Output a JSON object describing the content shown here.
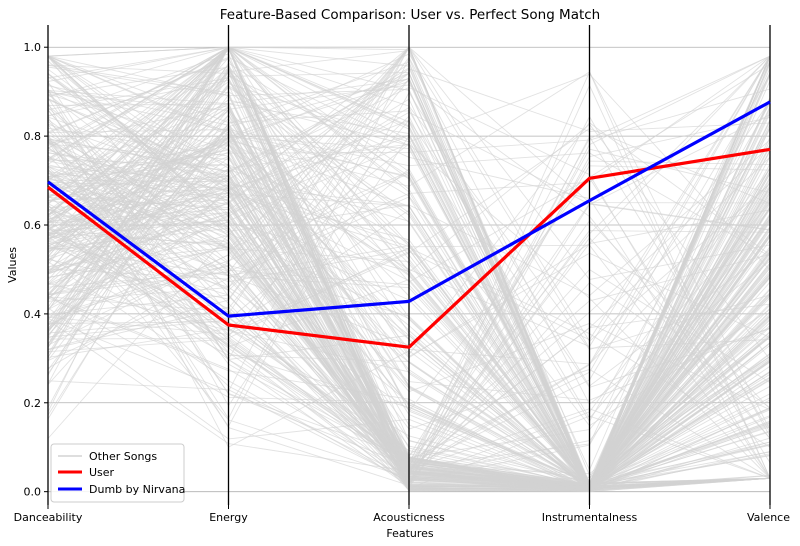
{
  "chart_data": {
    "type": "parallel_coordinates",
    "title": "Feature-Based Comparison: User vs. Perfect Song Match",
    "xlabel": "Features",
    "ylabel": "Values",
    "categories": [
      "Danceability",
      "Energy",
      "Acousticness",
      "Instrumentalness",
      "Valence"
    ],
    "ylim": [
      -0.03,
      1.05
    ],
    "yticks": [
      "0.0",
      "0.2",
      "0.4",
      "0.6",
      "0.8",
      "1.0"
    ],
    "grid": true,
    "legend_position": "bottom-left",
    "background_series_name": "Other Songs",
    "background_color": "#d3d3d3",
    "series": [
      {
        "name": "User",
        "color": "#ff0000",
        "values": [
          0.685,
          0.375,
          0.325,
          0.705,
          0.77
        ]
      },
      {
        "name": "Dumb by Nirvana",
        "color": "#0000ff",
        "values": [
          0.697,
          0.395,
          0.428,
          0.655,
          0.877
        ]
      }
    ]
  }
}
